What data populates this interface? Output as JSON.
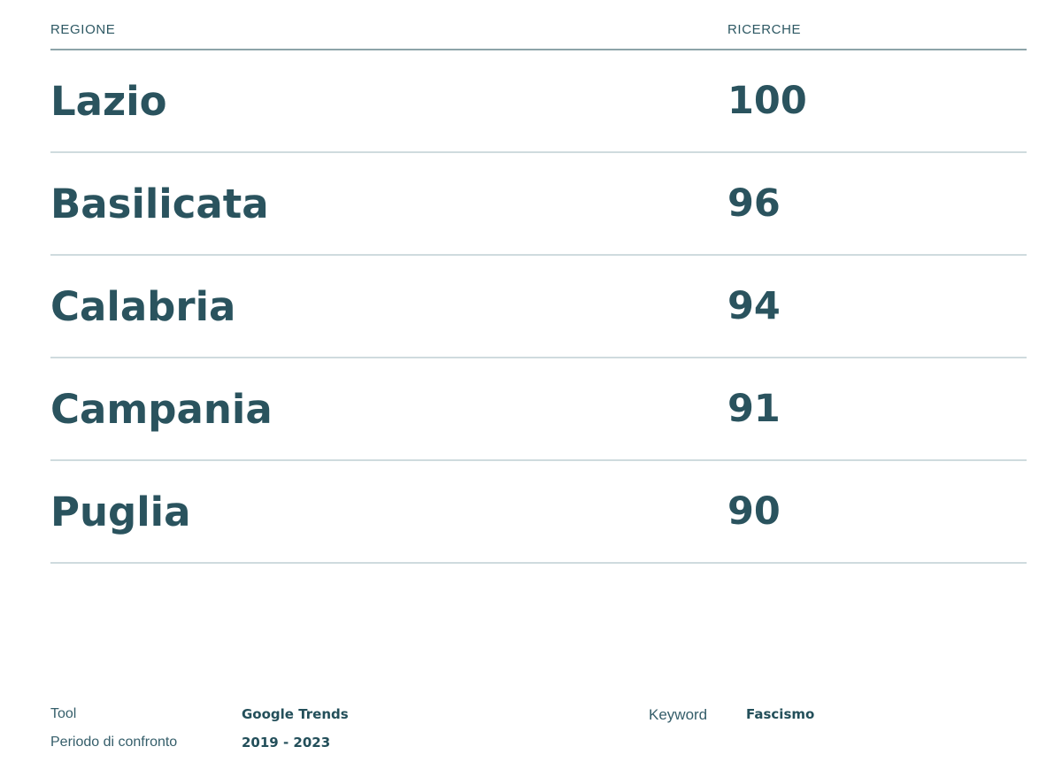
{
  "table": {
    "header": {
      "region_label": "REGIONE",
      "searches_label": "RICERCHE"
    },
    "rows": [
      {
        "region": "Lazio",
        "searches": "100"
      },
      {
        "region": "Basilicata",
        "searches": "96"
      },
      {
        "region": "Calabria",
        "searches": "94"
      },
      {
        "region": "Campania",
        "searches": "91"
      },
      {
        "region": "Puglia",
        "searches": "90"
      }
    ]
  },
  "footer": {
    "tool_label": "Tool",
    "tool_value": "Google Trends",
    "period_label": "Periodo di confronto",
    "period_value": "2019 - 2023",
    "keyword_label": "Keyword",
    "keyword_value": "Fascismo"
  },
  "colors": {
    "text_primary": "#2a535e",
    "header_rule": "#8da4a9",
    "row_rule": "#cfdbde",
    "background": "#ffffff"
  },
  "chart_data": {
    "type": "table",
    "columns": [
      "REGIONE",
      "RICERCHE"
    ],
    "categories": [
      "Lazio",
      "Basilicata",
      "Calabria",
      "Campania",
      "Puglia"
    ],
    "values": [
      100,
      96,
      94,
      91,
      90
    ],
    "title": "",
    "xlabel": "REGIONE",
    "ylabel": "RICERCHE",
    "meta": {
      "tool": "Google Trends",
      "period": "2019 - 2023",
      "keyword": "Fascismo"
    }
  }
}
